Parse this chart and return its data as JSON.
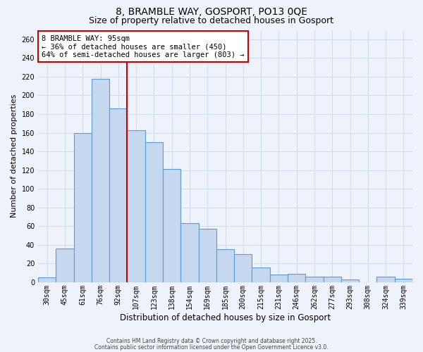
{
  "title": "8, BRAMBLE WAY, GOSPORT, PO13 0QE",
  "subtitle": "Size of property relative to detached houses in Gosport",
  "xlabel": "Distribution of detached houses by size in Gosport",
  "ylabel": "Number of detached properties",
  "bar_labels": [
    "30sqm",
    "45sqm",
    "61sqm",
    "76sqm",
    "92sqm",
    "107sqm",
    "123sqm",
    "138sqm",
    "154sqm",
    "169sqm",
    "185sqm",
    "200sqm",
    "215sqm",
    "231sqm",
    "246sqm",
    "262sqm",
    "277sqm",
    "293sqm",
    "308sqm",
    "324sqm",
    "339sqm"
  ],
  "bar_values": [
    5,
    36,
    160,
    218,
    186,
    163,
    150,
    121,
    63,
    57,
    35,
    30,
    16,
    8,
    9,
    6,
    6,
    3,
    0,
    6,
    4
  ],
  "bar_color": "#c5d8f0",
  "bar_edge_color": "#5b9bd5",
  "grid_color": "#d0daea",
  "background_color": "#eef2fa",
  "vline_x": 4.5,
  "vline_color": "#cc0000",
  "annotation_title": "8 BRAMBLE WAY: 95sqm",
  "annotation_line1": "← 36% of detached houses are smaller (450)",
  "annotation_line2": "64% of semi-detached houses are larger (803) →",
  "annotation_box_color": "#cc0000",
  "ylim": [
    0,
    270
  ],
  "yticks": [
    0,
    20,
    40,
    60,
    80,
    100,
    120,
    140,
    160,
    180,
    200,
    220,
    240,
    260
  ],
  "footer1": "Contains HM Land Registry data © Crown copyright and database right 2025.",
  "footer2": "Contains public sector information licensed under the Open Government Licence v3.0.",
  "title_fontsize": 10,
  "subtitle_fontsize": 9,
  "tick_fontsize": 7,
  "ylabel_fontsize": 8,
  "xlabel_fontsize": 8.5
}
